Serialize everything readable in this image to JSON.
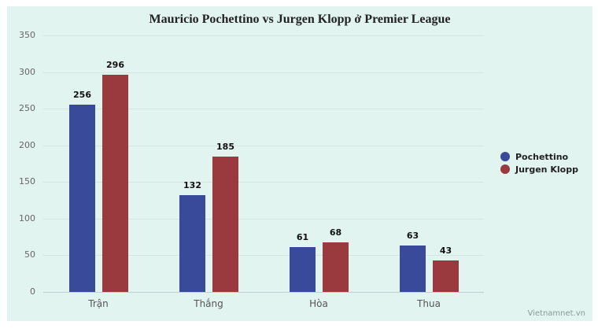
{
  "chart_data": {
    "type": "bar",
    "title": "Mauricio Pochettino vs Jurgen Klopp ở Premier League",
    "xlabel": "",
    "ylabel": "",
    "categories": [
      "Trận",
      "Thắng",
      "Hòa",
      "Thua"
    ],
    "series": [
      {
        "name": "Pochettino",
        "color": "#3a4a9a",
        "values": [
          256,
          132,
          61,
          63
        ]
      },
      {
        "name": "Jurgen Klopp",
        "color": "#9b3a3e",
        "values": [
          296,
          185,
          68,
          43
        ]
      }
    ],
    "ylim": [
      0,
      350
    ],
    "yticks": [
      0,
      50,
      100,
      150,
      200,
      250,
      300,
      350
    ],
    "grid": true,
    "legend_position": "right",
    "data_labels": true
  },
  "title": "Mauricio Pochettino vs Jurgen Klopp ở Premier League",
  "yticks": [
    "0",
    "50",
    "100",
    "150",
    "200",
    "250",
    "300",
    "350"
  ],
  "categories": [
    "Trận",
    "Thắng",
    "Hòa",
    "Thua"
  ],
  "labels": {
    "p": [
      "256",
      "132",
      "61",
      "63"
    ],
    "k": [
      "296",
      "185",
      "68",
      "43"
    ]
  },
  "legend": [
    {
      "label": "Pochettino",
      "color": "#3a4a9a"
    },
    {
      "label": "Jurgen Klopp",
      "color": "#9b3a3e"
    }
  ],
  "credit": "Vietnamnet.vn"
}
